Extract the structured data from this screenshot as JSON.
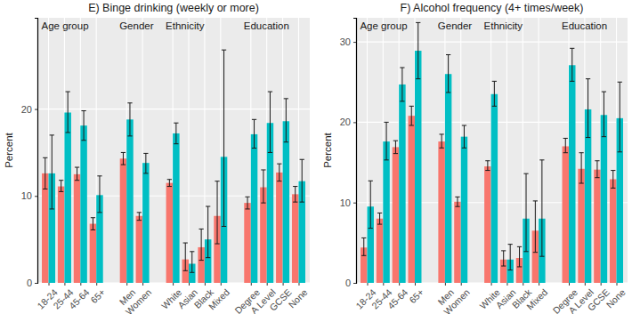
{
  "chart_data": [
    {
      "type": "bar",
      "title": "E) Binge drinking (weekly or more)",
      "ylabel": "Percent",
      "categories": [
        "18-24",
        "25-44",
        "45-64",
        "65+",
        "Men",
        "Women",
        "White",
        "Asian",
        "Black",
        "Mixed",
        "Degree",
        "A Level",
        "GCSE",
        "None"
      ],
      "groups": [
        "Age group",
        "Age group",
        "Age group",
        "Age group",
        "Gender",
        "Gender",
        "Ethnicity",
        "Ethnicity",
        "Ethnicity",
        "Ethnicity",
        "Education",
        "Education",
        "Education",
        "Education"
      ],
      "series": [
        {
          "color": "#F8766D",
          "values": [
            12.6,
            11.1,
            12.5,
            6.8,
            14.3,
            7.7,
            11.5,
            2.7,
            4.1,
            7.7,
            9.2,
            11.0,
            12.7,
            10.2
          ],
          "ci_low": [
            10.8,
            10.5,
            11.8,
            6.1,
            13.6,
            7.2,
            11.1,
            1.4,
            2.6,
            4.5,
            8.5,
            9.2,
            11.7,
            9.3
          ],
          "ci_high": [
            14.4,
            11.8,
            13.3,
            7.5,
            15.0,
            8.1,
            11.9,
            4.6,
            6.2,
            11.7,
            9.9,
            13.0,
            13.7,
            11.1
          ]
        },
        {
          "color": "#00BFC4",
          "values": [
            12.6,
            19.6,
            18.1,
            10.1,
            18.8,
            13.8,
            17.2,
            2.2,
            5.0,
            14.5,
            17.1,
            18.4,
            18.6,
            11.7
          ],
          "ci_low": [
            8.5,
            17.3,
            16.4,
            8.1,
            16.9,
            12.6,
            16.0,
            1.2,
            2.9,
            6.5,
            15.5,
            15.0,
            16.2,
            9.3
          ],
          "ci_high": [
            17.0,
            22.0,
            19.8,
            12.3,
            20.7,
            14.9,
            18.4,
            3.6,
            8.8,
            26.8,
            18.8,
            22.0,
            21.2,
            14.2
          ]
        }
      ],
      "ylim": [
        0,
        30.5
      ],
      "yticks": [
        0,
        10,
        20
      ],
      "grid": true
    },
    {
      "type": "bar",
      "title": "F) Alcohol frequency (4+ times/week)",
      "ylabel": "Percent",
      "categories": [
        "18-24",
        "25-44",
        "45-64",
        "65+",
        "Men",
        "Women",
        "White",
        "Asian",
        "Black",
        "Mixed",
        "Degree",
        "A Level",
        "GCSE",
        "None"
      ],
      "groups": [
        "Age group",
        "Age group",
        "Age group",
        "Age group",
        "Gender",
        "Gender",
        "Ethnicity",
        "Ethnicity",
        "Ethnicity",
        "Ethnicity",
        "Education",
        "Education",
        "Education",
        "Education"
      ],
      "series": [
        {
          "color": "#F8766D",
          "values": [
            4.4,
            8.0,
            16.9,
            20.8,
            17.6,
            10.1,
            14.5,
            2.9,
            3.1,
            6.5,
            17.0,
            14.2,
            14.1,
            12.9
          ],
          "ci_low": [
            3.4,
            7.3,
            16.1,
            19.6,
            16.8,
            9.5,
            14.0,
            2.1,
            2.0,
            3.8,
            16.2,
            12.4,
            13.1,
            11.8
          ],
          "ci_high": [
            5.6,
            8.7,
            17.7,
            22.0,
            18.5,
            10.7,
            15.2,
            4.0,
            4.5,
            10.2,
            18.0,
            16.2,
            15.2,
            14.0
          ]
        },
        {
          "color": "#00BFC4",
          "values": [
            9.5,
            17.6,
            24.7,
            28.9,
            26.0,
            18.2,
            23.5,
            2.9,
            8.0,
            8.0,
            27.1,
            21.6,
            20.9,
            20.5
          ],
          "ci_low": [
            6.8,
            15.3,
            22.6,
            25.4,
            23.7,
            16.8,
            22.0,
            1.6,
            3.9,
            3.3,
            25.1,
            18.1,
            18.2,
            16.3
          ],
          "ci_high": [
            12.7,
            20.0,
            26.8,
            32.4,
            28.4,
            19.6,
            25.1,
            4.8,
            13.6,
            15.3,
            29.2,
            25.4,
            23.8,
            25.0
          ]
        }
      ],
      "ylim": [
        0,
        33
      ],
      "yticks": [
        0,
        10,
        20,
        30
      ],
      "grid": true
    }
  ]
}
